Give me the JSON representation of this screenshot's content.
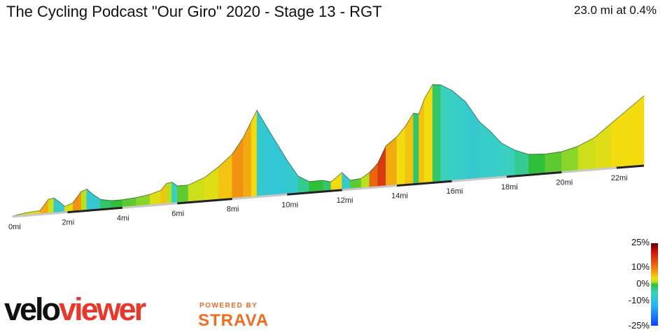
{
  "header": {
    "title": "The Cycling Podcast \"Our Giro\" 2020 - Stage 13 - RGT",
    "summary": "23.0 mi at 0.4%"
  },
  "legend": {
    "labels": [
      "25%",
      "10%",
      "0%",
      "-10%",
      "-25%"
    ]
  },
  "branding": {
    "logo_part1": "velo",
    "logo_part2": "viewer",
    "powered_by": "POWERED BY",
    "strava": "STRAVA"
  },
  "colors": {
    "logo_red": "#e8382b",
    "strava_orange": "#f26b21"
  },
  "chart_data": {
    "type": "area",
    "title": "The Cycling Podcast \"Our Giro\" 2020 - Stage 13 - RGT",
    "xlabel": "",
    "ylabel": "",
    "x_unit": "mi",
    "x_ticks": [
      "0mi",
      "2mi",
      "4mi",
      "6mi",
      "8mi",
      "10mi",
      "12mi",
      "14mi",
      "16mi",
      "18mi",
      "20mi",
      "22mi"
    ],
    "xlim": [
      0,
      23.0
    ],
    "distance_mi": 23.0,
    "average_grade_pct": 0.4,
    "color_scale_pct": [
      -25,
      25
    ],
    "profile": [
      {
        "x": 0.0,
        "y": 0.0,
        "grade": 3
      },
      {
        "x": 0.5,
        "y": 0.02,
        "grade": 4
      },
      {
        "x": 1.0,
        "y": 0.03,
        "grade": 5
      },
      {
        "x": 1.3,
        "y": 0.13,
        "grade": 8
      },
      {
        "x": 1.5,
        "y": 0.14,
        "grade": 4
      },
      {
        "x": 1.7,
        "y": 0.1,
        "grade": -5
      },
      {
        "x": 1.9,
        "y": 0.05,
        "grade": -4
      },
      {
        "x": 2.2,
        "y": 0.08,
        "grade": 5
      },
      {
        "x": 2.5,
        "y": 0.18,
        "grade": 9
      },
      {
        "x": 2.7,
        "y": 0.2,
        "grade": 3
      },
      {
        "x": 2.9,
        "y": 0.15,
        "grade": -6
      },
      {
        "x": 3.2,
        "y": 0.09,
        "grade": -5
      },
      {
        "x": 3.6,
        "y": 0.07,
        "grade": -1
      },
      {
        "x": 4.0,
        "y": 0.07,
        "grade": 0
      },
      {
        "x": 4.5,
        "y": 0.08,
        "grade": 1
      },
      {
        "x": 5.0,
        "y": 0.1,
        "grade": 2
      },
      {
        "x": 5.4,
        "y": 0.13,
        "grade": 5
      },
      {
        "x": 5.6,
        "y": 0.19,
        "grade": 7
      },
      {
        "x": 5.8,
        "y": 0.2,
        "grade": 3
      },
      {
        "x": 6.0,
        "y": 0.16,
        "grade": -3
      },
      {
        "x": 6.4,
        "y": 0.16,
        "grade": 1
      },
      {
        "x": 7.0,
        "y": 0.22,
        "grade": 4
      },
      {
        "x": 7.5,
        "y": 0.31,
        "grade": 5
      },
      {
        "x": 8.0,
        "y": 0.42,
        "grade": 7
      },
      {
        "x": 8.4,
        "y": 0.57,
        "grade": 9
      },
      {
        "x": 8.7,
        "y": 0.72,
        "grade": 8
      },
      {
        "x": 8.9,
        "y": 0.82,
        "grade": 6
      },
      {
        "x": 9.2,
        "y": 0.68,
        "grade": -5
      },
      {
        "x": 9.6,
        "y": 0.5,
        "grade": -6
      },
      {
        "x": 10.0,
        "y": 0.32,
        "grade": -6
      },
      {
        "x": 10.4,
        "y": 0.16,
        "grade": -5
      },
      {
        "x": 10.8,
        "y": 0.1,
        "grade": -2
      },
      {
        "x": 11.3,
        "y": 0.1,
        "grade": 0
      },
      {
        "x": 11.6,
        "y": 0.08,
        "grade": -1
      },
      {
        "x": 12.0,
        "y": 0.16,
        "grade": 6
      },
      {
        "x": 12.3,
        "y": 0.08,
        "grade": -5
      },
      {
        "x": 12.7,
        "y": 0.09,
        "grade": 1
      },
      {
        "x": 13.0,
        "y": 0.14,
        "grade": 3
      },
      {
        "x": 13.3,
        "y": 0.22,
        "grade": 11
      },
      {
        "x": 13.6,
        "y": 0.38,
        "grade": 13
      },
      {
        "x": 14.0,
        "y": 0.46,
        "grade": 8
      },
      {
        "x": 14.3,
        "y": 0.55,
        "grade": 6
      },
      {
        "x": 14.6,
        "y": 0.67,
        "grade": 7
      },
      {
        "x": 14.8,
        "y": 0.66,
        "grade": -1
      },
      {
        "x": 15.0,
        "y": 0.8,
        "grade": 7
      },
      {
        "x": 15.3,
        "y": 0.93,
        "grade": 6
      },
      {
        "x": 15.6,
        "y": 0.92,
        "grade": -1
      },
      {
        "x": 16.0,
        "y": 0.86,
        "grade": -3
      },
      {
        "x": 16.5,
        "y": 0.74,
        "grade": -4
      },
      {
        "x": 17.0,
        "y": 0.54,
        "grade": -5
      },
      {
        "x": 17.4,
        "y": 0.44,
        "grade": -4
      },
      {
        "x": 17.8,
        "y": 0.32,
        "grade": -4
      },
      {
        "x": 18.3,
        "y": 0.24,
        "grade": -3
      },
      {
        "x": 18.8,
        "y": 0.19,
        "grade": -2
      },
      {
        "x": 19.4,
        "y": 0.18,
        "grade": 0
      },
      {
        "x": 20.0,
        "y": 0.19,
        "grade": 1
      },
      {
        "x": 20.6,
        "y": 0.23,
        "grade": 2
      },
      {
        "x": 21.2,
        "y": 0.3,
        "grade": 4
      },
      {
        "x": 21.8,
        "y": 0.42,
        "grade": 5
      },
      {
        "x": 22.4,
        "y": 0.54,
        "grade": 6
      },
      {
        "x": 23.0,
        "y": 0.66,
        "grade": 6
      }
    ]
  }
}
